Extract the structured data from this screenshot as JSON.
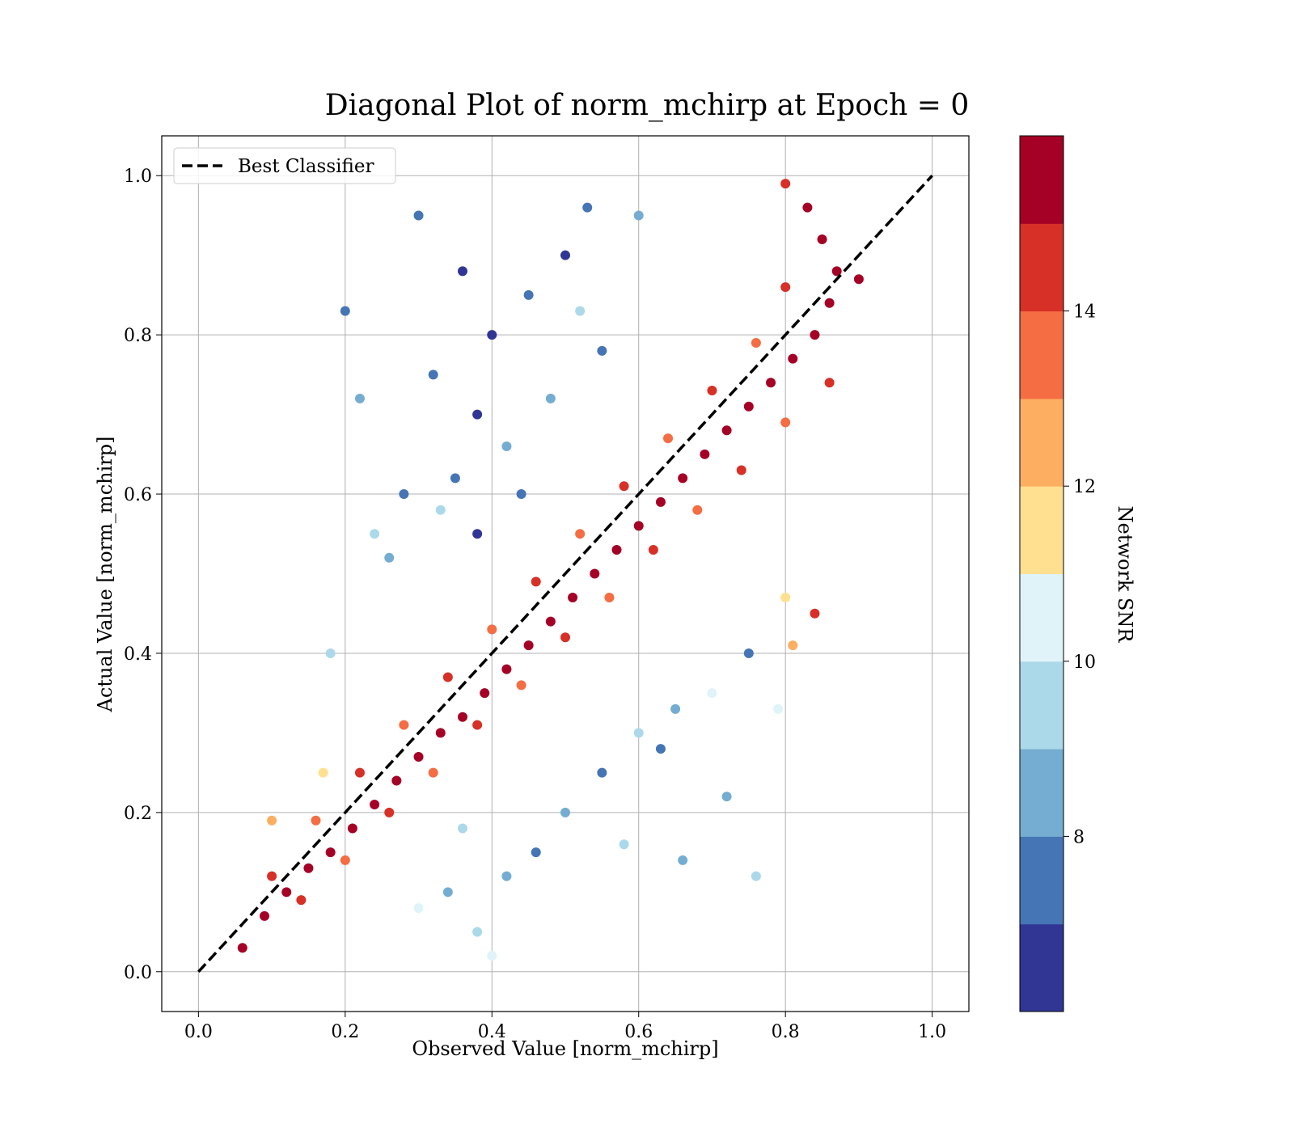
{
  "chart_data": {
    "type": "scatter",
    "title": "Diagonal Plot of norm_mchirp at Epoch = 0",
    "xlabel": "Observed Value [norm_mchirp]",
    "ylabel": "Actual Value [norm_mchirp]",
    "xlim": [
      -0.05,
      1.05
    ],
    "ylim": [
      -0.05,
      1.05
    ],
    "xticks": [
      "0.0",
      "0.2",
      "0.4",
      "0.6",
      "0.8",
      "1.0"
    ],
    "yticks": [
      "0.0",
      "0.2",
      "0.4",
      "0.6",
      "0.8",
      "1.0"
    ],
    "grid": true,
    "legend": {
      "placement": "upper-left",
      "entries": [
        {
          "label": "Best Classifier",
          "style": "dashed",
          "color": "#000000"
        }
      ]
    },
    "reference_line": {
      "x": [
        0.0,
        1.0
      ],
      "y": [
        0.0,
        1.0
      ],
      "style": "dashed"
    },
    "colorbar": {
      "label": "Network SNR",
      "range": [
        6,
        16
      ],
      "ticks": [
        "8",
        "10",
        "12",
        "14"
      ],
      "tick_values": [
        8,
        10,
        12,
        14
      ],
      "colors": [
        "#313695",
        "#4575b4",
        "#74add1",
        "#abd9e9",
        "#e0f3f8",
        "#fee090",
        "#fdae61",
        "#f46d43",
        "#d73027",
        "#a50026"
      ]
    },
    "series": [
      {
        "points": [
          [
            0.06,
            0.03,
            16
          ],
          [
            0.09,
            0.07,
            16
          ],
          [
            0.12,
            0.1,
            15
          ],
          [
            0.15,
            0.13,
            16
          ],
          [
            0.18,
            0.15,
            16
          ],
          [
            0.21,
            0.18,
            15
          ],
          [
            0.24,
            0.21,
            16
          ],
          [
            0.27,
            0.24,
            16
          ],
          [
            0.3,
            0.27,
            15
          ],
          [
            0.33,
            0.3,
            16
          ],
          [
            0.36,
            0.32,
            16
          ],
          [
            0.39,
            0.35,
            15
          ],
          [
            0.42,
            0.38,
            16
          ],
          [
            0.45,
            0.41,
            16
          ],
          [
            0.48,
            0.44,
            15
          ],
          [
            0.51,
            0.47,
            16
          ],
          [
            0.54,
            0.5,
            16
          ],
          [
            0.57,
            0.53,
            15
          ],
          [
            0.6,
            0.56,
            16
          ],
          [
            0.63,
            0.59,
            16
          ],
          [
            0.66,
            0.62,
            15
          ],
          [
            0.69,
            0.65,
            16
          ],
          [
            0.72,
            0.68,
            16
          ],
          [
            0.75,
            0.71,
            15
          ],
          [
            0.78,
            0.74,
            16
          ],
          [
            0.81,
            0.77,
            16
          ],
          [
            0.84,
            0.8,
            15
          ],
          [
            0.86,
            0.84,
            16
          ],
          [
            0.87,
            0.88,
            16
          ],
          [
            0.85,
            0.92,
            15
          ],
          [
            0.83,
            0.96,
            16
          ],
          [
            0.8,
            0.99,
            14
          ],
          [
            0.1,
            0.12,
            14
          ],
          [
            0.16,
            0.19,
            13
          ],
          [
            0.22,
            0.25,
            14
          ],
          [
            0.28,
            0.31,
            13
          ],
          [
            0.34,
            0.37,
            14
          ],
          [
            0.4,
            0.43,
            13
          ],
          [
            0.46,
            0.49,
            14
          ],
          [
            0.52,
            0.55,
            13
          ],
          [
            0.58,
            0.61,
            14
          ],
          [
            0.64,
            0.67,
            13
          ],
          [
            0.7,
            0.73,
            14
          ],
          [
            0.76,
            0.79,
            13
          ],
          [
            0.8,
            0.86,
            14
          ],
          [
            0.14,
            0.09,
            14
          ],
          [
            0.2,
            0.14,
            13
          ],
          [
            0.26,
            0.2,
            14
          ],
          [
            0.32,
            0.25,
            13
          ],
          [
            0.38,
            0.31,
            14
          ],
          [
            0.44,
            0.36,
            13
          ],
          [
            0.5,
            0.42,
            14
          ],
          [
            0.56,
            0.47,
            13
          ],
          [
            0.62,
            0.53,
            14
          ],
          [
            0.68,
            0.58,
            13
          ],
          [
            0.74,
            0.63,
            14
          ],
          [
            0.8,
            0.69,
            13
          ],
          [
            0.86,
            0.74,
            14
          ],
          [
            0.35,
            0.62,
            7
          ],
          [
            0.38,
            0.7,
            6
          ],
          [
            0.32,
            0.75,
            7
          ],
          [
            0.4,
            0.8,
            6
          ],
          [
            0.45,
            0.85,
            7
          ],
          [
            0.36,
            0.88,
            6
          ],
          [
            0.3,
            0.95,
            7
          ],
          [
            0.5,
            0.9,
            6
          ],
          [
            0.55,
            0.78,
            7
          ],
          [
            0.42,
            0.66,
            8
          ],
          [
            0.33,
            0.58,
            9
          ],
          [
            0.48,
            0.72,
            8
          ],
          [
            0.52,
            0.83,
            9
          ],
          [
            0.6,
            0.95,
            8
          ],
          [
            0.28,
            0.6,
            7
          ],
          [
            0.26,
            0.52,
            8
          ],
          [
            0.38,
            0.55,
            6
          ],
          [
            0.44,
            0.6,
            7
          ],
          [
            0.34,
            0.1,
            8
          ],
          [
            0.38,
            0.05,
            9
          ],
          [
            0.3,
            0.08,
            10
          ],
          [
            0.42,
            0.12,
            8
          ],
          [
            0.46,
            0.15,
            7
          ],
          [
            0.36,
            0.18,
            9
          ],
          [
            0.5,
            0.2,
            8
          ],
          [
            0.55,
            0.25,
            7
          ],
          [
            0.6,
            0.3,
            9
          ],
          [
            0.65,
            0.33,
            8
          ],
          [
            0.7,
            0.35,
            10
          ],
          [
            0.75,
            0.4,
            7
          ],
          [
            0.72,
            0.22,
            8
          ],
          [
            0.58,
            0.16,
            9
          ],
          [
            0.63,
            0.28,
            7
          ],
          [
            0.4,
            0.02,
            10
          ],
          [
            0.22,
            0.72,
            8
          ],
          [
            0.2,
            0.83,
            7
          ],
          [
            0.24,
            0.55,
            9
          ],
          [
            0.18,
            0.4,
            9
          ],
          [
            0.79,
            0.33,
            10
          ],
          [
            0.76,
            0.12,
            9
          ],
          [
            0.8,
            0.47,
            11
          ],
          [
            0.84,
            0.45,
            14
          ],
          [
            0.81,
            0.41,
            12
          ],
          [
            0.9,
            0.87,
            15
          ],
          [
            0.17,
            0.25,
            11
          ],
          [
            0.1,
            0.19,
            12
          ],
          [
            0.66,
            0.14,
            8
          ],
          [
            0.53,
            0.96,
            7
          ]
        ]
      }
    ]
  }
}
